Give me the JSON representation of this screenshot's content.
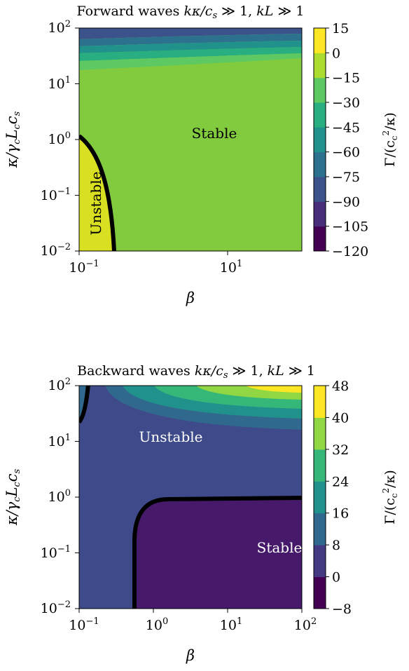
{
  "chart_data": [
    {
      "type": "heatmap",
      "title": "Forward waves kκ/cₛ ≫ 1, kL ≫ 1",
      "xlabel": "β",
      "ylabel": "κ/γ_c L_c c_s",
      "xscale": "log",
      "yscale": "log",
      "xlim": [
        0.1,
        100
      ],
      "ylim": [
        0.01,
        100
      ],
      "x_ticks": [
        "10⁻¹",
        "10¹"
      ],
      "y_ticks": [
        "10⁻²",
        "10⁻¹",
        "10⁰",
        "10¹",
        "10²"
      ],
      "colorbar_label": "Γ/(c_c²/κ)",
      "colorbar_levels": [
        -120,
        -105,
        -90,
        -75,
        -60,
        -45,
        -30,
        -15,
        0,
        15
      ],
      "colorbar_tick_labels": [
        "15",
        "0",
        "−15",
        "−30",
        "−45",
        "−60",
        "−75",
        "−90",
        "−105",
        "−120"
      ],
      "colormap": [
        "#440154",
        "#472d7b",
        "#3b528b",
        "#2c728e",
        "#21918c",
        "#28ae80",
        "#5ec962",
        "#addc30",
        "#fde725"
      ],
      "annotations": [
        "Stable",
        "Unstable"
      ],
      "boundary": {
        "x_at_bottom": 0.17,
        "y_at_left": 1.15
      }
    },
    {
      "type": "heatmap",
      "title": "Backward waves kκ/cₛ ≫ 1, kL ≫ 1",
      "xlabel": "β",
      "ylabel": "κ/γ_c L_c c_s",
      "xscale": "log",
      "yscale": "log",
      "xlim": [
        0.1,
        100
      ],
      "ylim": [
        0.01,
        100
      ],
      "x_ticks": [
        "10⁻¹",
        "10⁰",
        "10¹",
        "10²"
      ],
      "y_ticks": [
        "10⁻²",
        "10⁻¹",
        "10⁰",
        "10¹",
        "10²"
      ],
      "colorbar_label": "Γ/(c_c²/κ)",
      "colorbar_levels": [
        -8,
        0,
        8,
        16,
        24,
        32,
        40,
        48
      ],
      "colorbar_tick_labels": [
        "48",
        "40",
        "32",
        "24",
        "16",
        "8",
        "0",
        "−8"
      ],
      "colormap": [
        "#440154",
        "#443983",
        "#31688e",
        "#21918c",
        "#35b779",
        "#90d743",
        "#fde725"
      ],
      "annotations": [
        "Unstable",
        "Stable"
      ],
      "boundary": {
        "x_vertical": 0.52,
        "y_horizontal": 1.0
      }
    }
  ],
  "labels": {
    "p1": {
      "title_main": "Forward waves ",
      "title_math": "kκ/c",
      "title_sub": "s",
      "title_rest": " ≫ 1, ",
      "title_math2": "kL",
      "title_end": " ≫ 1",
      "stable": "Stable",
      "unstable": "Unstable",
      "ylabel_main": "κ/γ",
      "ylabel_sub1": "c",
      "ylabel_L": "L",
      "ylabel_sub2": "c",
      "ylabel_c": "c",
      "ylabel_sub3": "s",
      "xlabel": "β",
      "cb_a": "Γ/(c",
      "cb_sub": "c",
      "cb_sup": "2",
      "cb_b": "/κ)"
    },
    "p2": {
      "title_main": "Backward waves ",
      "title_math": "kκ/c",
      "title_sub": "s",
      "title_rest": " ≫ 1, ",
      "title_math2": "kL",
      "title_end": " ≫ 1",
      "stable": "Stable",
      "unstable": "Unstable",
      "ylabel_main": "κ/γ",
      "ylabel_sub1": "c",
      "ylabel_L": "L",
      "ylabel_sub2": "c",
      "ylabel_c": "c",
      "ylabel_sub3": "s",
      "xlabel": "β",
      "cb_a": "Γ/(c",
      "cb_sub": "c",
      "cb_sup": "2",
      "cb_b": "/κ)"
    },
    "ticks": {
      "ten": "10",
      "e_m2": "−2",
      "e_m1": "−1",
      "e_0": "0",
      "e_1": "1",
      "e_2": "2"
    }
  }
}
